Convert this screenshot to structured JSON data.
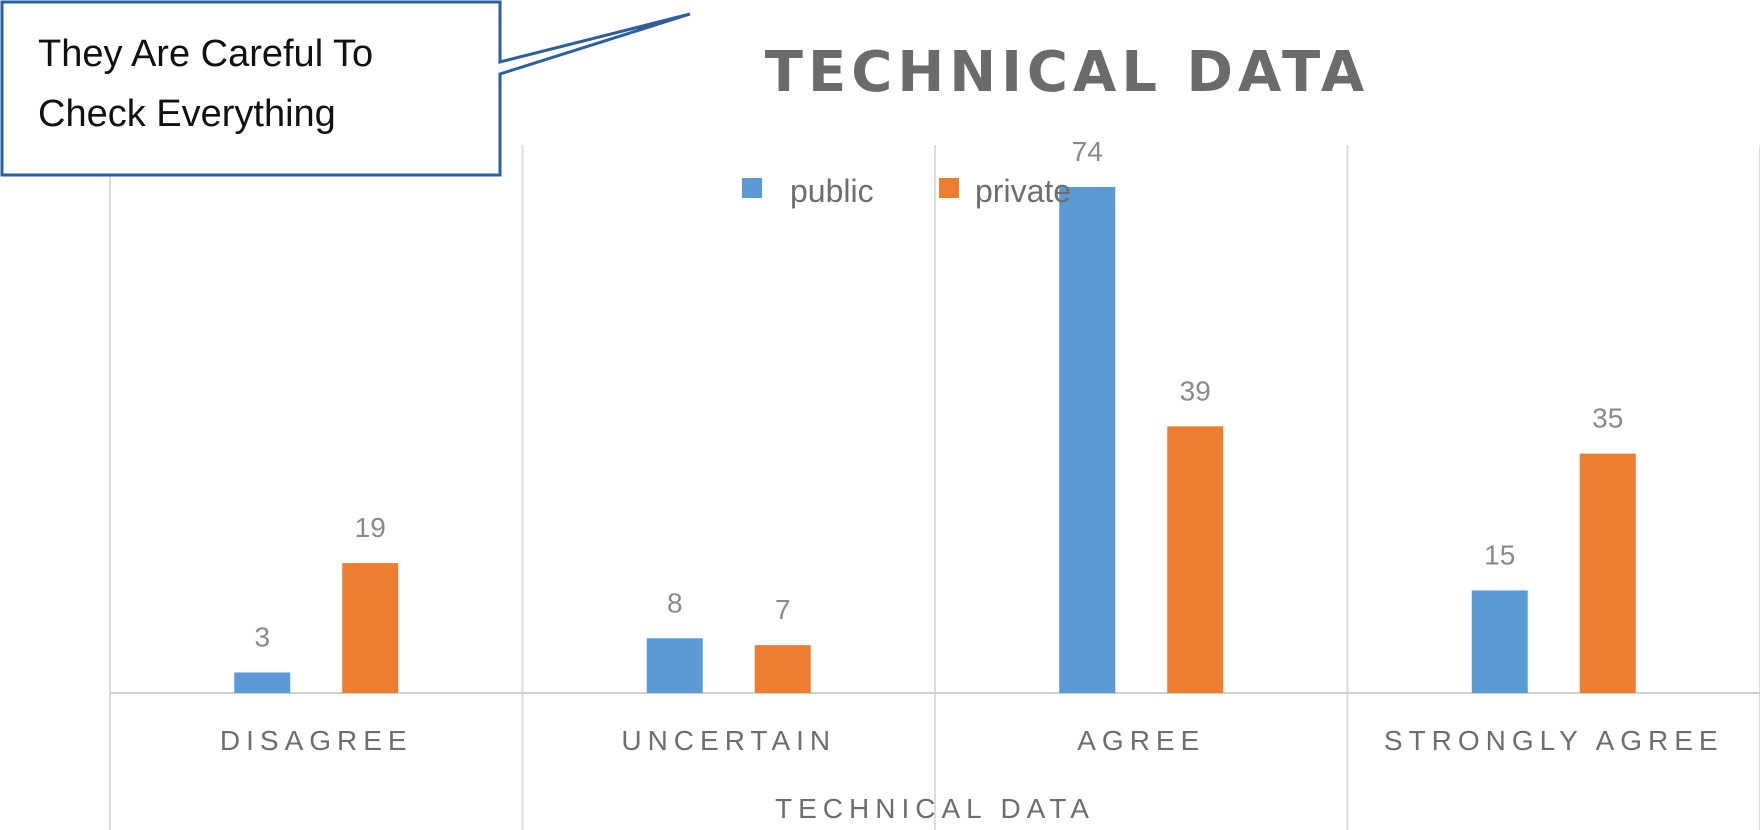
{
  "callout": {
    "line1": "They Are Careful To",
    "line2": "Check Everything"
  },
  "chart_data": {
    "type": "bar",
    "title": "TECHNICAL DATA",
    "xlabel": "TECHNICAL DATA",
    "ylabel": "",
    "categories": [
      "DISAGREE",
      "UNCERTAIN",
      "AGREE",
      "STRONGLY AGREE"
    ],
    "series": [
      {
        "name": "public",
        "values": [
          3,
          8,
          74,
          15
        ],
        "color": "#5b9bd5"
      },
      {
        "name": "private",
        "values": [
          19,
          7,
          39,
          35
        ],
        "color": "#ed7d31"
      }
    ],
    "ylim": [
      0,
      74
    ],
    "grid": "vertical category separators",
    "legend": "top-center",
    "data_labels": true
  }
}
